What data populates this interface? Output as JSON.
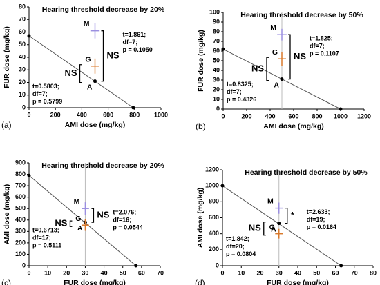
{
  "chart_data": [
    {
      "type": "scatter",
      "panel_label": "(a)",
      "title": "Hearing threshold decrease by 20%",
      "x_label": "AMI dose (mg/kg)",
      "y_label": "FUR dose (mg/kg)",
      "xlim": [
        0,
        1000
      ],
      "ylim": [
        0,
        80
      ],
      "xticks": [
        0,
        200,
        400,
        600,
        800,
        1000
      ],
      "yticks": [
        0,
        10,
        20,
        30,
        40,
        50,
        60,
        70,
        80
      ],
      "additivity_line": {
        "x": [
          0,
          790
        ],
        "y": [
          57,
          0
        ]
      },
      "intercepts": [
        {
          "x": 0,
          "y": 57,
          "xerr": 0,
          "yerr": 4
        },
        {
          "x": 790,
          "y": 0,
          "xerr": 70,
          "yerr": 0
        }
      ],
      "points": [
        {
          "label": "A",
          "x": 500,
          "y": 21,
          "xerr": 0,
          "yerr": 0,
          "color": "#000000"
        },
        {
          "label": "G",
          "x": 500,
          "y": 33,
          "xerr": 30,
          "yerr": 6,
          "color": "#d9792b"
        },
        {
          "label": "M",
          "x": 500,
          "y": 61,
          "xerr": 35,
          "yerr": 6,
          "color": "#9b8fe0"
        }
      ],
      "comparisons": [
        {
          "symbol": "NS",
          "stats": [
            "t=1.861;",
            "df=7;",
            "p = 0.1050"
          ]
        },
        {
          "symbol": "NS",
          "stats": [
            "t=0.5803;",
            "df=7;",
            "p = 0.5799"
          ]
        }
      ]
    },
    {
      "type": "scatter",
      "panel_label": "(b)",
      "title": "Hearing threshold decrease by 50%",
      "x_label": "AMI dose (mg/kg)",
      "y_label": "FUR dose (mg/kg)",
      "xlim": [
        0,
        1200
      ],
      "ylim": [
        0,
        100
      ],
      "xticks": [
        0,
        200,
        400,
        600,
        800,
        1000,
        1200
      ],
      "yticks": [
        0,
        10,
        20,
        30,
        40,
        50,
        60,
        70,
        80,
        90,
        100
      ],
      "additivity_line": {
        "x": [
          0,
          1000
        ],
        "y": [
          62,
          0
        ]
      },
      "intercepts": [
        {
          "x": 0,
          "y": 62,
          "xerr": 0,
          "yerr": 4
        },
        {
          "x": 1000,
          "y": 0,
          "xerr": 90,
          "yerr": 0
        }
      ],
      "points": [
        {
          "label": "A",
          "x": 500,
          "y": 31,
          "xerr": 0,
          "yerr": 0,
          "color": "#000000"
        },
        {
          "label": "G",
          "x": 500,
          "y": 52,
          "xerr": 35,
          "yerr": 7,
          "color": "#d9792b"
        },
        {
          "label": "M",
          "x": 500,
          "y": 77,
          "xerr": 40,
          "yerr": 6,
          "color": "#9b8fe0"
        }
      ],
      "comparisons": [
        {
          "symbol": "NS",
          "stats": [
            "t=1.825;",
            "df=7;",
            "p = 0.1107"
          ]
        },
        {
          "symbol": "NS",
          "stats": [
            "t=0.8325;",
            "df=7;",
            "p = 0.4326"
          ]
        }
      ]
    },
    {
      "type": "scatter",
      "panel_label": "(c)",
      "title": "Hearing threshold decrease by 20%",
      "x_label": "FUR dose (mg/kg)",
      "y_label": "AMI dose (mg/kg)",
      "xlim": [
        0,
        70
      ],
      "ylim": [
        0,
        900
      ],
      "xticks": [
        0,
        10,
        20,
        30,
        40,
        50,
        60,
        70
      ],
      "yticks": [
        0,
        100,
        200,
        300,
        400,
        500,
        600,
        700,
        800,
        900
      ],
      "additivity_line": {
        "x": [
          0,
          57
        ],
        "y": [
          790,
          0
        ]
      },
      "intercepts": [
        {
          "x": 0,
          "y": 790,
          "xerr": 0,
          "yerr": 50
        },
        {
          "x": 57,
          "y": 0,
          "xerr": 4,
          "yerr": 0
        }
      ],
      "points": [
        {
          "label": "A",
          "x": 30,
          "y": 380,
          "xerr": 0,
          "yerr": 0,
          "color": "#000000"
        },
        {
          "label": "G",
          "x": 30,
          "y": 355,
          "xerr": 2,
          "yerr": 50,
          "color": "#d9792b"
        },
        {
          "label": "M",
          "x": 30,
          "y": 500,
          "xerr": 2,
          "yerr": 55,
          "color": "#9b8fe0"
        }
      ],
      "comparisons": [
        {
          "symbol": "NS",
          "stats": [
            "t=2.076;",
            "df=16;",
            "p = 0.0544"
          ]
        },
        {
          "symbol": "NS",
          "stats": [
            "t=0.6713;",
            "df=17;",
            "p = 0.5111"
          ]
        }
      ]
    },
    {
      "type": "scatter",
      "panel_label": "(d)",
      "title": "Hearing threshold decrease by 50%",
      "x_label": "FUR dose (mg/kg)",
      "y_label": "AMI dose (mg/kg)",
      "xlim": [
        0,
        80
      ],
      "ylim": [
        0,
        1200
      ],
      "xticks": [
        0,
        10,
        20,
        30,
        40,
        50,
        60,
        70,
        80
      ],
      "yticks": [
        0,
        200,
        400,
        600,
        800,
        1000,
        1200
      ],
      "additivity_line": {
        "x": [
          0,
          63
        ],
        "y": [
          1000,
          0
        ]
      },
      "intercepts": [
        {
          "x": 0,
          "y": 1000,
          "xerr": 0,
          "yerr": 80
        },
        {
          "x": 63,
          "y": 0,
          "xerr": 4,
          "yerr": 0
        }
      ],
      "points": [
        {
          "label": "A",
          "x": 30,
          "y": 530,
          "xerr": 0,
          "yerr": 0,
          "color": "#000000"
        },
        {
          "label": "G",
          "x": 30,
          "y": 400,
          "xerr": 2,
          "yerr": 60,
          "color": "#d9792b"
        },
        {
          "label": "M",
          "x": 30,
          "y": 720,
          "xerr": 2,
          "yerr": 70,
          "color": "#9b8fe0"
        }
      ],
      "comparisons": [
        {
          "symbol": "*",
          "stats": [
            "t=2.633;",
            "df=19;",
            "p = 0.0164"
          ]
        },
        {
          "symbol": "NS",
          "stats": [
            "t=1.842;",
            "df=20;",
            "p = 0.0804"
          ]
        }
      ]
    }
  ]
}
